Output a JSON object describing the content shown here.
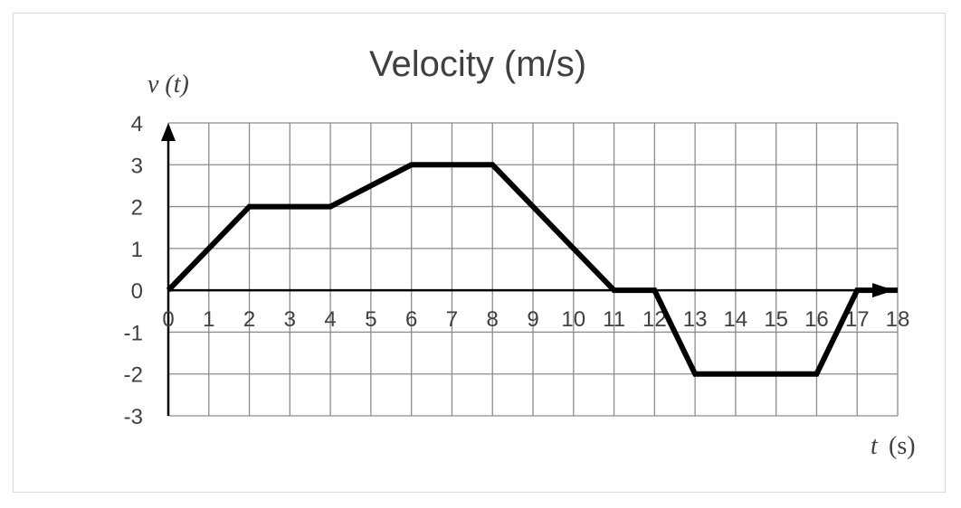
{
  "chart_data": {
    "type": "line",
    "title": "Velocity (m/s)",
    "ylabel": "v (t)",
    "xlabel_var": "t",
    "xlabel_unit": "(s)",
    "xlim": [
      0,
      18
    ],
    "ylim": [
      -3,
      4
    ],
    "grid": true,
    "x_ticks": [
      0,
      1,
      2,
      3,
      4,
      5,
      6,
      7,
      8,
      9,
      10,
      11,
      12,
      13,
      14,
      15,
      16,
      17,
      18
    ],
    "y_ticks": [
      -3,
      -2,
      -1,
      0,
      1,
      2,
      3,
      4
    ],
    "series": [
      {
        "name": "v(t)",
        "x": [
          0,
          2,
          4,
          6,
          8,
          11,
          12,
          13,
          16,
          17,
          18
        ],
        "y": [
          0,
          2,
          2,
          3,
          3,
          0,
          0,
          -2,
          -2,
          0,
          0
        ]
      }
    ]
  }
}
